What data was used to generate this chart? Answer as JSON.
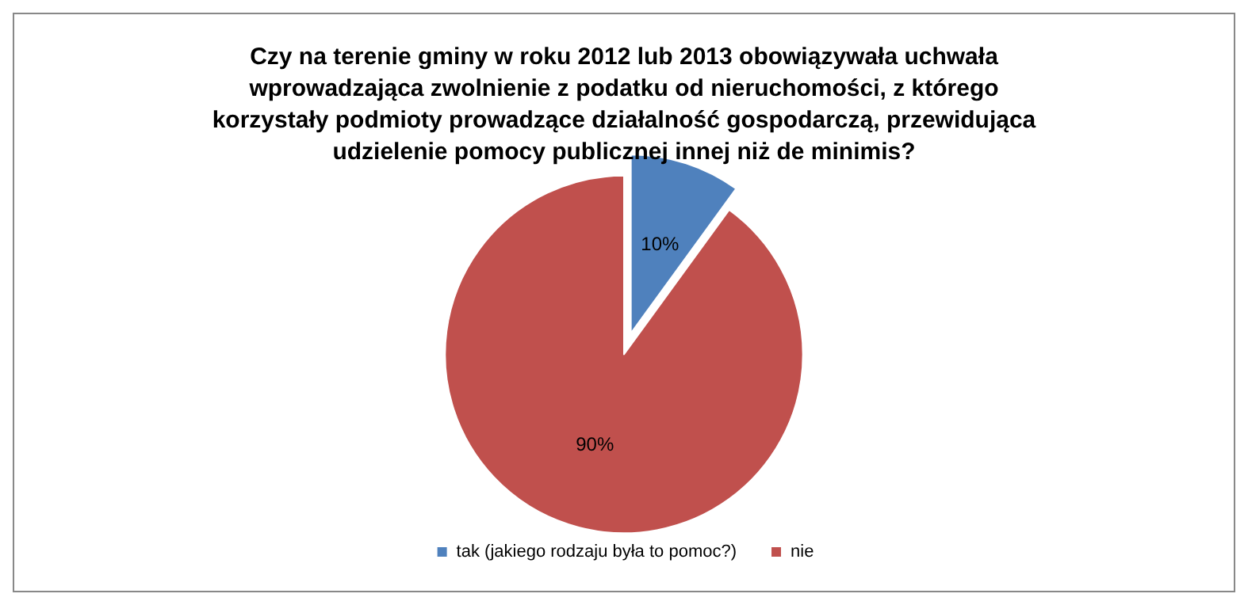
{
  "chart_data": {
    "type": "pie",
    "title": "Czy na terenie gminy w roku 2012 lub 2013 obowiązywała uchwała\nwprowadzająca zwolnienie z podatku od nieruchomości, z którego\nkorzystały podmioty prowadzące działalność gospodarczą, przewidująca\nudzielenie pomocy publicznej innej niż de minimis?",
    "categories": [
      "tak (jakiego rodzaju była to pomoc?)",
      "nie"
    ],
    "values": [
      10,
      90
    ],
    "colors": [
      "#4f81bd",
      "#c0504d"
    ],
    "value_labels": [
      "10%",
      "90%"
    ],
    "legend": "bottom"
  }
}
